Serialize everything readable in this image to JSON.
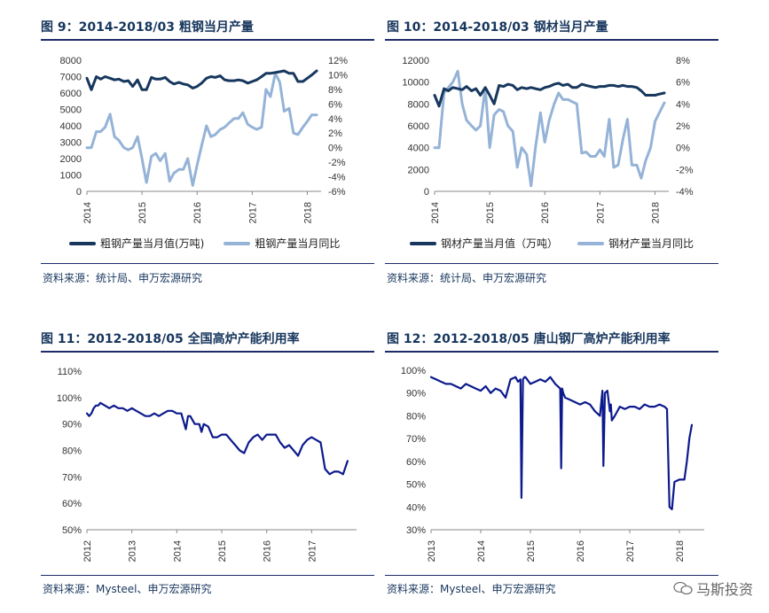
{
  "watermark": {
    "text": "马斯投资",
    "icon": "wechat-icon"
  },
  "panels": [
    {
      "title": "图 9：2014-2018/03 粗钢当月产量",
      "source": "资料来源：统计局、申万宏源研究"
    },
    {
      "title": "图 10：2014-2018/03 钢材当月产量",
      "source": "资料来源：统计局、申万宏源研究"
    },
    {
      "title": "图 11：2012-2018/05 全国高炉产能利用率",
      "source": "资料来源：Mysteel、申万宏源研究"
    },
    {
      "title": "图 12：2012-2018/05 唐山钢厂高炉产能利用率",
      "source": "资料来源：Mysteel、申万宏源研究"
    }
  ],
  "chart_data": [
    {
      "type": "line",
      "title": "粗钢当月产量",
      "x_ticks": [
        "2014",
        "2015",
        "2016",
        "2017",
        "2018"
      ],
      "xlim": [
        2014,
        2018.25
      ],
      "ylim": [
        0,
        8000
      ],
      "y_ticks": [
        "0",
        "1000",
        "2000",
        "3000",
        "4000",
        "5000",
        "6000",
        "7000",
        "8000"
      ],
      "y2lim": [
        -6,
        12
      ],
      "y2_ticks": [
        "-6%",
        "-4%",
        "-2%",
        "0%",
        "2%",
        "4%",
        "6%",
        "8%",
        "10%",
        "12%"
      ],
      "colors": {
        "primary": "#17375e",
        "secondary": "#95b3d7"
      },
      "series": [
        {
          "name": "粗钢产量当月值(万吨)",
          "axis": "left",
          "x": [
            2014.0,
            2014.08,
            2014.17,
            2014.25,
            2014.33,
            2014.42,
            2014.5,
            2014.58,
            2014.67,
            2014.75,
            2014.83,
            2014.92,
            2015.0,
            2015.08,
            2015.17,
            2015.25,
            2015.33,
            2015.42,
            2015.5,
            2015.58,
            2015.67,
            2015.75,
            2015.83,
            2015.92,
            2016.0,
            2016.08,
            2016.17,
            2016.25,
            2016.33,
            2016.42,
            2016.5,
            2016.58,
            2016.67,
            2016.75,
            2016.83,
            2016.92,
            2017.0,
            2017.08,
            2017.17,
            2017.25,
            2017.33,
            2017.42,
            2017.5,
            2017.58,
            2017.67,
            2017.75,
            2017.83,
            2017.92,
            2018.0,
            2018.08,
            2018.17
          ],
          "values": [
            6900,
            6200,
            7000,
            6850,
            7000,
            6900,
            6800,
            6850,
            6700,
            6750,
            6400,
            6800,
            6200,
            6200,
            6950,
            6850,
            6850,
            6950,
            6700,
            6550,
            6650,
            6550,
            6500,
            6300,
            6400,
            6600,
            6900,
            7000,
            6950,
            7050,
            6800,
            6750,
            6750,
            6800,
            6750,
            6600,
            6700,
            6800,
            7000,
            7200,
            7200,
            7250,
            7300,
            7350,
            7200,
            7200,
            6700,
            6700,
            6900,
            7100,
            7350
          ]
        },
        {
          "name": "粗钢产量当月同比",
          "axis": "right",
          "x": [
            2014.0,
            2014.08,
            2014.17,
            2014.25,
            2014.33,
            2014.42,
            2014.5,
            2014.58,
            2014.67,
            2014.75,
            2014.83,
            2014.92,
            2015.0,
            2015.08,
            2015.17,
            2015.25,
            2015.33,
            2015.42,
            2015.5,
            2015.58,
            2015.67,
            2015.75,
            2015.83,
            2015.92,
            2016.0,
            2016.08,
            2016.17,
            2016.25,
            2016.33,
            2016.42,
            2016.5,
            2016.58,
            2016.67,
            2016.75,
            2016.83,
            2016.92,
            2017.0,
            2017.08,
            2017.17,
            2017.25,
            2017.33,
            2017.42,
            2017.5,
            2017.58,
            2017.67,
            2017.75,
            2017.83,
            2017.92,
            2018.0,
            2018.08,
            2018.17
          ],
          "values": [
            0,
            0,
            2.2,
            2.2,
            2.8,
            4.6,
            1.5,
            1,
            0,
            -0.3,
            0,
            1.5,
            -1.5,
            -4.8,
            -1.2,
            -0.8,
            -1.8,
            -0.8,
            -4.6,
            -3.5,
            -3,
            -3,
            -1.5,
            -5.2,
            -2.4,
            0.2,
            3,
            1.5,
            1.8,
            2.5,
            2.8,
            3.4,
            4,
            4,
            4.8,
            3.2,
            2.8,
            2.5,
            2.8,
            8,
            7,
            10.2,
            9,
            5,
            5.4,
            2,
            1.8,
            2.8,
            3.6,
            4.5,
            4.5
          ]
        }
      ]
    },
    {
      "type": "line",
      "title": "钢材当月产量",
      "x_ticks": [
        "2014",
        "2015",
        "2016",
        "2017",
        "2018"
      ],
      "xlim": [
        2014,
        2018.25
      ],
      "ylim": [
        0,
        12000
      ],
      "y_ticks": [
        "0",
        "2000",
        "4000",
        "6000",
        "8000",
        "10000",
        "12000"
      ],
      "y2lim": [
        -4,
        8
      ],
      "y2_ticks": [
        "-4%",
        "-2%",
        "0%",
        "2%",
        "4%",
        "6%",
        "8%"
      ],
      "colors": {
        "primary": "#17375e",
        "secondary": "#95b3d7"
      },
      "series": [
        {
          "name": "钢材产量当月值（万吨）",
          "axis": "left",
          "x": [
            2014.0,
            2014.08,
            2014.17,
            2014.25,
            2014.33,
            2014.42,
            2014.5,
            2014.58,
            2014.67,
            2014.75,
            2014.83,
            2014.92,
            2015.0,
            2015.08,
            2015.17,
            2015.25,
            2015.33,
            2015.42,
            2015.5,
            2015.58,
            2015.67,
            2015.75,
            2015.83,
            2015.92,
            2016.0,
            2016.08,
            2016.17,
            2016.25,
            2016.33,
            2016.42,
            2016.5,
            2016.58,
            2016.67,
            2016.75,
            2016.83,
            2016.92,
            2017.0,
            2017.08,
            2017.17,
            2017.25,
            2017.33,
            2017.42,
            2017.5,
            2017.58,
            2017.67,
            2017.75,
            2017.83,
            2017.92,
            2018.0,
            2018.08,
            2018.17
          ],
          "values": [
            8800,
            7800,
            9400,
            9200,
            9500,
            9400,
            9300,
            9600,
            9200,
            9400,
            8800,
            9500,
            8800,
            8000,
            9700,
            9600,
            9800,
            9700,
            9300,
            9500,
            9400,
            9500,
            9400,
            9300,
            9500,
            9600,
            9800,
            9900,
            9700,
            9800,
            9500,
            9500,
            9800,
            9700,
            9600,
            9500,
            9600,
            9600,
            9700,
            9700,
            9600,
            9700,
            9600,
            9600,
            9500,
            9200,
            8800,
            8800,
            8800,
            8900,
            9000
          ]
        },
        {
          "name": "钢材产量当月同比",
          "axis": "right",
          "x": [
            2014.0,
            2014.08,
            2014.17,
            2014.25,
            2014.33,
            2014.42,
            2014.5,
            2014.58,
            2014.67,
            2014.75,
            2014.83,
            2014.92,
            2015.0,
            2015.08,
            2015.17,
            2015.25,
            2015.33,
            2015.42,
            2015.5,
            2015.58,
            2015.67,
            2015.75,
            2015.83,
            2015.92,
            2016.0,
            2016.08,
            2016.17,
            2016.25,
            2016.33,
            2016.42,
            2016.5,
            2016.58,
            2016.67,
            2016.75,
            2016.83,
            2016.92,
            2017.0,
            2017.08,
            2017.17,
            2017.25,
            2017.33,
            2017.42,
            2017.5,
            2017.58,
            2017.67,
            2017.75,
            2017.83,
            2017.92,
            2018.0,
            2018.08,
            2018.17
          ],
          "values": [
            0,
            0,
            5,
            5.5,
            6,
            7,
            4,
            2.5,
            2,
            1.6,
            2,
            5.5,
            0,
            3,
            3.5,
            3.3,
            2,
            1.5,
            -1.8,
            0,
            -0.6,
            -3.5,
            0,
            3.2,
            0.5,
            2.5,
            4,
            5,
            4.4,
            4.4,
            4.2,
            4,
            -0.5,
            -0.4,
            -0.8,
            -0.8,
            -0.2,
            -0.8,
            2.6,
            -1.8,
            -1.6,
            0.8,
            2.6,
            -1.6,
            -1.6,
            -2.8,
            -1.2,
            0,
            2.4,
            3.2,
            4.1
          ]
        }
      ]
    },
    {
      "type": "line",
      "title": "全国高炉产能利用率",
      "x_ticks": [
        "2012",
        "2013",
        "2014",
        "2015",
        "2016",
        "2017"
      ],
      "xlim": [
        2012,
        2018
      ],
      "ylim": [
        50,
        110
      ],
      "y_ticks": [
        "50%",
        "60%",
        "70%",
        "80%",
        "90%",
        "100%",
        "110%"
      ],
      "colors": {
        "primary": "#0c1a8c"
      },
      "series": [
        {
          "name": "",
          "x": [
            2012.0,
            2012.05,
            2012.1,
            2012.15,
            2012.2,
            2012.25,
            2012.3,
            2012.4,
            2012.5,
            2012.6,
            2012.7,
            2012.8,
            2012.9,
            2013.0,
            2013.1,
            2013.2,
            2013.3,
            2013.4,
            2013.5,
            2013.6,
            2013.7,
            2013.8,
            2013.9,
            2014.0,
            2014.1,
            2014.2,
            2014.25,
            2014.3,
            2014.4,
            2014.5,
            2014.55,
            2014.6,
            2014.7,
            2014.8,
            2014.9,
            2015.0,
            2015.1,
            2015.2,
            2015.3,
            2015.4,
            2015.5,
            2015.6,
            2015.7,
            2015.8,
            2015.9,
            2016.0,
            2016.1,
            2016.2,
            2016.3,
            2016.4,
            2016.5,
            2016.6,
            2016.7,
            2016.8,
            2016.9,
            2017.0,
            2017.1,
            2017.2,
            2017.3,
            2017.35,
            2017.4,
            2017.5,
            2017.6,
            2017.7,
            2017.8
          ],
          "values": [
            94,
            93,
            94,
            96,
            97,
            97,
            98,
            97,
            96,
            97,
            96,
            96,
            95,
            96,
            95,
            94,
            93,
            93,
            94,
            93,
            94,
            95,
            95,
            94,
            94,
            88,
            93,
            93,
            90,
            90,
            87,
            90,
            89,
            85,
            85,
            86,
            86,
            84,
            82,
            80,
            79,
            83,
            85,
            86,
            84,
            86,
            86,
            86,
            83,
            81,
            82,
            80,
            78,
            82,
            84,
            85,
            84,
            83,
            73,
            72,
            71,
            72,
            72,
            71,
            76
          ]
        }
      ]
    },
    {
      "type": "line",
      "title": "唐山钢厂高炉产能利用率",
      "x_ticks": [
        "2013",
        "2014",
        "2015",
        "2016",
        "2017",
        "2018"
      ],
      "xlim": [
        2013,
        2018.5
      ],
      "ylim": [
        30,
        100
      ],
      "y_ticks": [
        "30%",
        "40%",
        "50%",
        "60%",
        "70%",
        "80%",
        "90%",
        "100%"
      ],
      "colors": {
        "primary": "#0c1a8c"
      },
      "series": [
        {
          "name": "",
          "x": [
            2013.0,
            2013.1,
            2013.2,
            2013.3,
            2013.4,
            2013.5,
            2013.6,
            2013.7,
            2013.8,
            2013.9,
            2014.0,
            2014.1,
            2014.2,
            2014.3,
            2014.4,
            2014.5,
            2014.6,
            2014.7,
            2014.75,
            2014.8,
            2014.82,
            2014.85,
            2014.88,
            2014.9,
            2015.0,
            2015.1,
            2015.2,
            2015.3,
            2015.4,
            2015.5,
            2015.6,
            2015.62,
            2015.64,
            2015.66,
            2015.7,
            2015.8,
            2015.9,
            2016.0,
            2016.1,
            2016.2,
            2016.3,
            2016.4,
            2016.45,
            2016.47,
            2016.5,
            2016.55,
            2016.6,
            2016.62,
            2016.64,
            2016.7,
            2016.8,
            2016.9,
            2017.0,
            2017.1,
            2017.2,
            2017.3,
            2017.4,
            2017.5,
            2017.6,
            2017.7,
            2017.75,
            2017.8,
            2017.85,
            2017.9,
            2018.0,
            2018.1,
            2018.15,
            2018.2,
            2018.25
          ],
          "values": [
            97,
            96,
            95,
            94,
            94,
            93,
            92,
            94,
            93,
            92,
            91,
            93,
            90,
            92,
            91,
            88,
            96,
            97,
            95,
            96,
            44,
            96,
            97,
            97,
            94,
            95,
            96,
            95,
            97,
            94,
            92,
            57,
            92,
            90,
            88,
            87,
            86,
            85,
            86,
            85,
            82,
            80,
            91,
            58,
            90,
            91,
            82,
            85,
            78,
            80,
            84,
            83,
            84,
            84,
            83,
            85,
            84,
            84,
            85,
            84,
            83,
            40,
            39,
            51,
            52,
            52,
            60,
            70,
            76
          ]
        }
      ]
    }
  ]
}
